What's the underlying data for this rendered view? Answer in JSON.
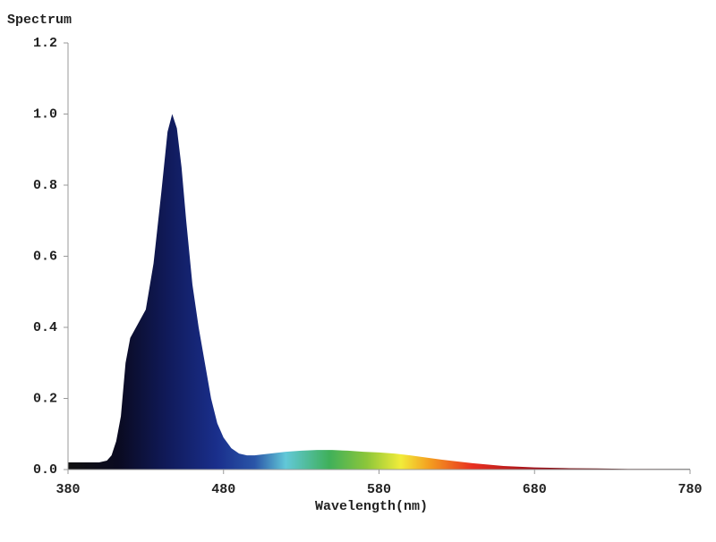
{
  "chart_data": {
    "type": "area",
    "title": "Spectrum",
    "x_label": "Wavelength(nm)",
    "x": [
      380,
      390,
      400,
      405,
      408,
      411,
      414,
      417,
      420,
      425,
      430,
      435,
      440,
      444,
      447,
      450,
      453,
      456,
      460,
      464,
      468,
      472,
      476,
      480,
      485,
      490,
      495,
      500,
      510,
      520,
      530,
      540,
      550,
      560,
      570,
      580,
      590,
      600,
      620,
      640,
      660,
      680,
      700,
      720,
      740,
      760,
      780
    ],
    "values": [
      0.02,
      0.02,
      0.02,
      0.025,
      0.04,
      0.08,
      0.15,
      0.3,
      0.37,
      0.41,
      0.45,
      0.58,
      0.78,
      0.95,
      1.0,
      0.96,
      0.85,
      0.7,
      0.52,
      0.4,
      0.3,
      0.2,
      0.13,
      0.09,
      0.06,
      0.045,
      0.04,
      0.04,
      0.045,
      0.05,
      0.053,
      0.055,
      0.055,
      0.053,
      0.05,
      0.048,
      0.045,
      0.04,
      0.028,
      0.018,
      0.01,
      0.006,
      0.004,
      0.003,
      0.002,
      0.002,
      0.002
    ],
    "xlim": [
      380,
      780
    ],
    "xticks": [
      380,
      480,
      580,
      680,
      780
    ],
    "ylim": [
      0,
      1.2
    ],
    "yticks": [
      {
        "value": 0,
        "label": "0.0"
      },
      0.2,
      0.4,
      0.6,
      0.8,
      {
        "value": 1,
        "label": "1.0"
      },
      1.2
    ],
    "grid": false
  }
}
